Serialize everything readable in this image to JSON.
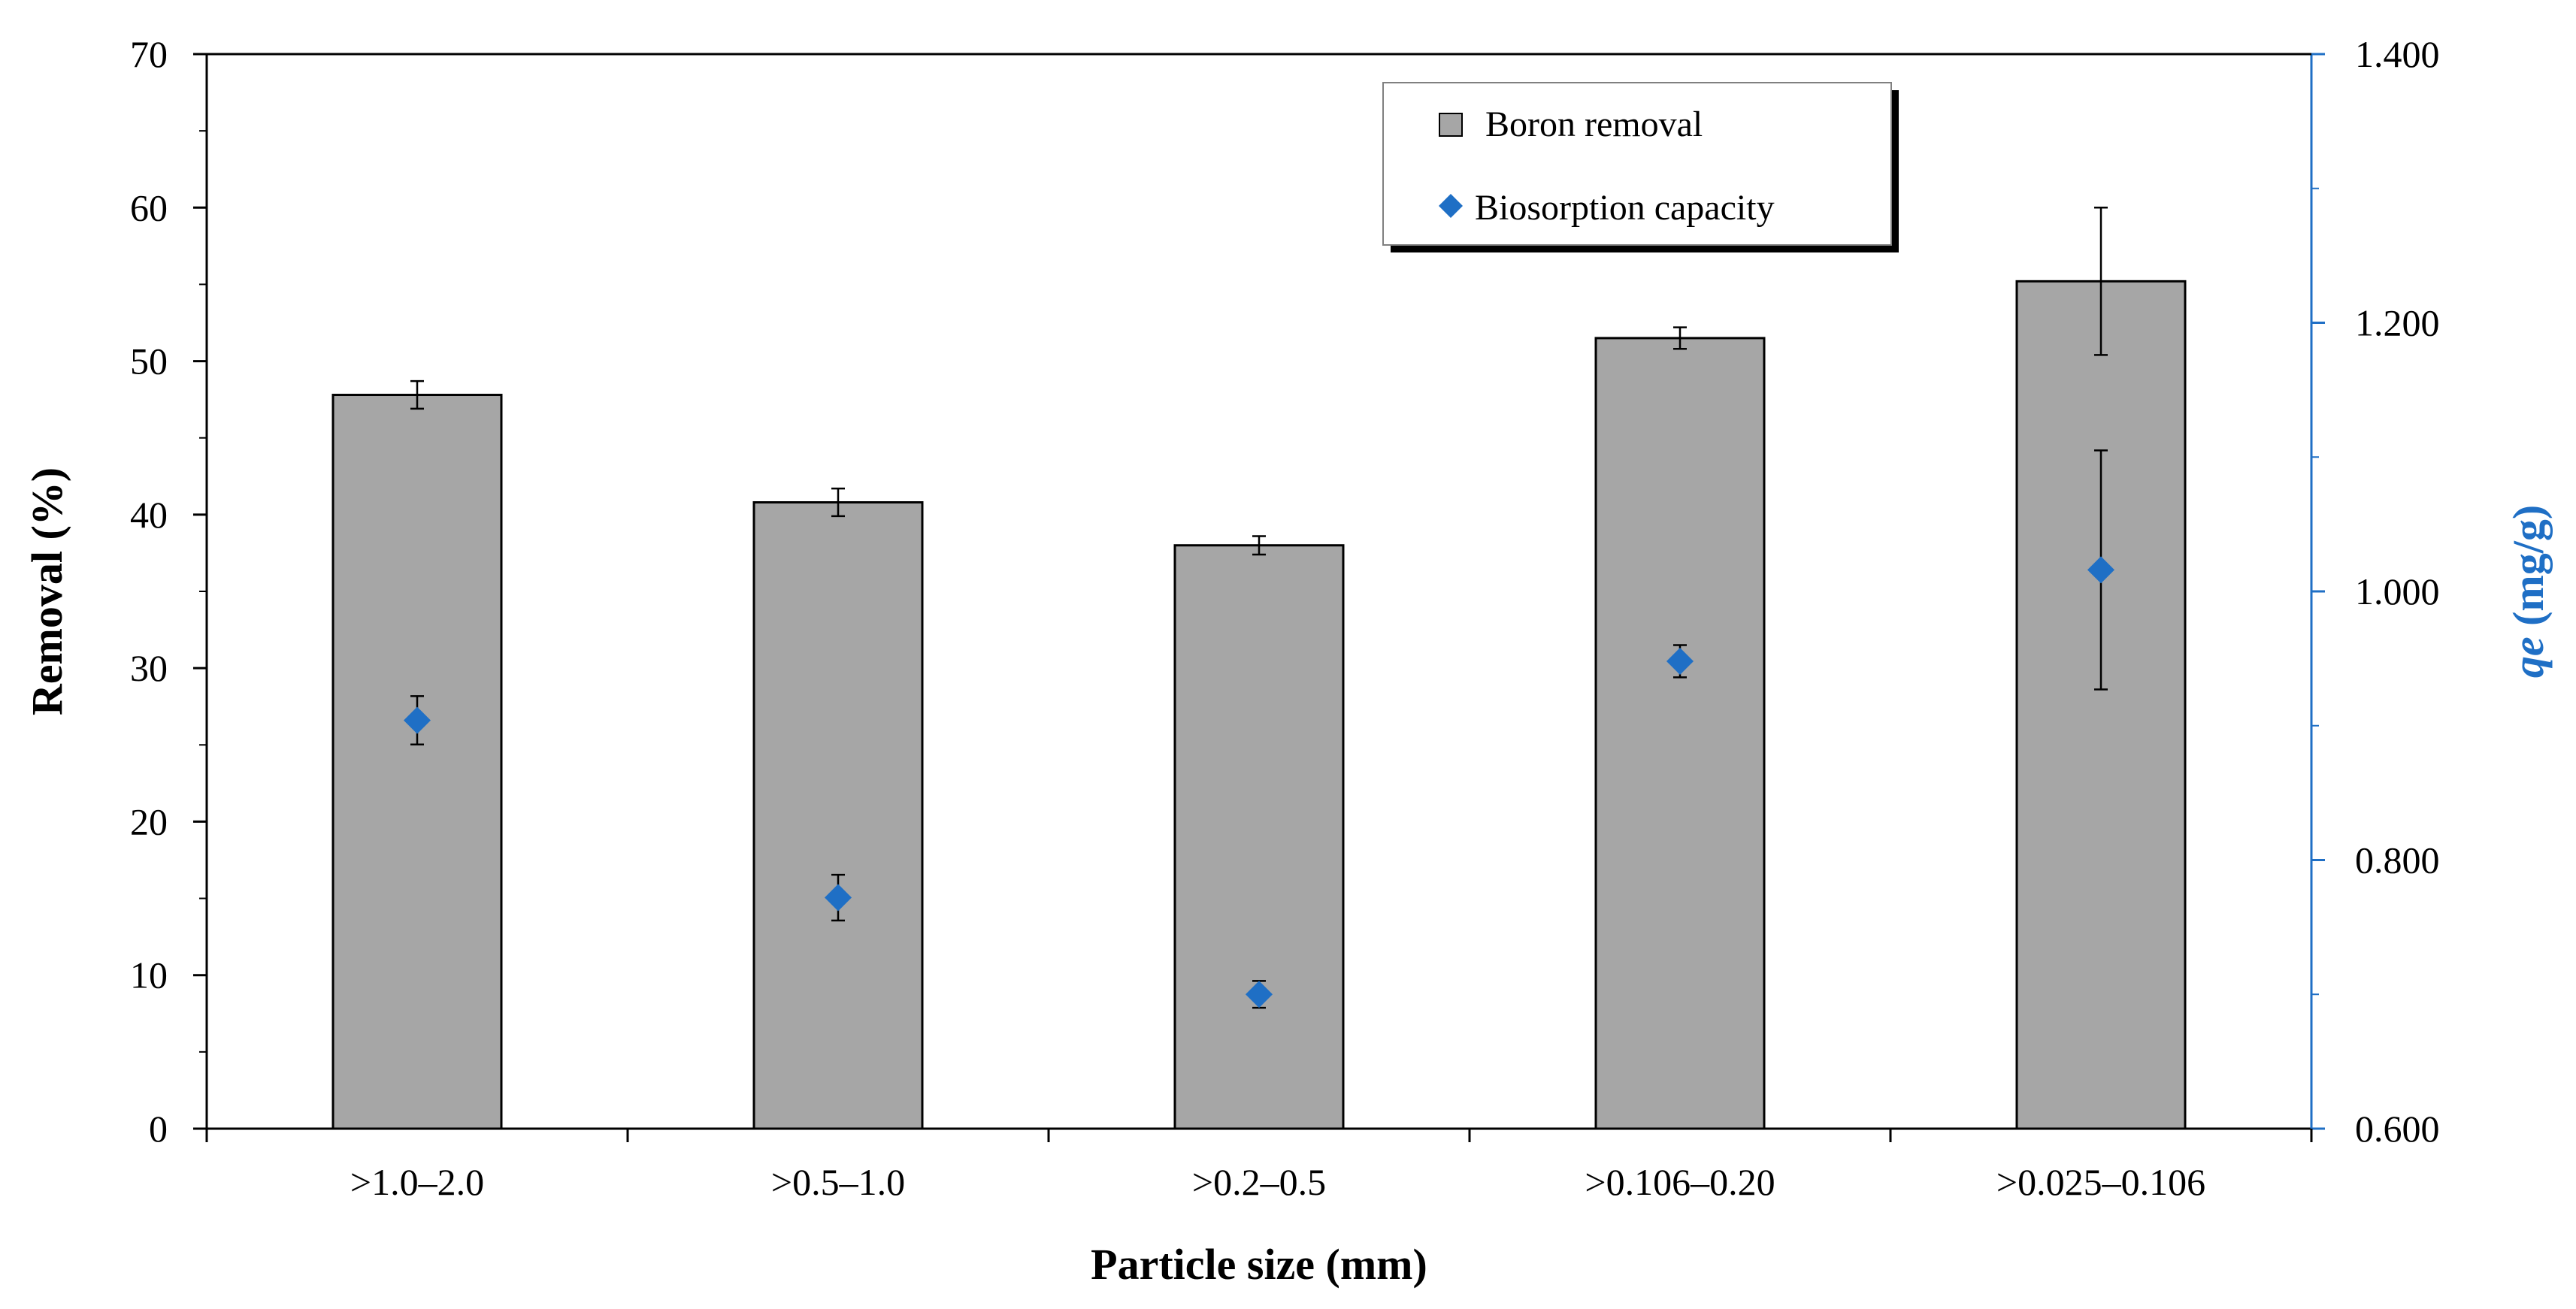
{
  "chart_data": {
    "type": "bar",
    "title": "",
    "categories": [
      ">1.0–2.0",
      ">0.5–1.0",
      ">0.2–0.5",
      ">0.106–0.20",
      ">0.025–0.106"
    ],
    "xlabel": "Particle size (mm)",
    "ylabel": "Removal (%)",
    "y2label_italic": "qe",
    "y2label_rest": " (mg/g)",
    "ylim": [
      0,
      70
    ],
    "yticks": [
      0,
      10,
      20,
      30,
      40,
      50,
      60,
      70
    ],
    "yminor_step": 5,
    "y2lim": [
      0.6,
      1.4
    ],
    "y2ticks": [
      "0.600",
      "0.800",
      "1.000",
      "1.200",
      "1.400"
    ],
    "y2tick_values": [
      0.6,
      0.8,
      1.0,
      1.2,
      1.4
    ],
    "y2minor_step": 0.1,
    "grid": false,
    "legend_position": "top-right",
    "series": [
      {
        "name": "Boron removal",
        "kind": "bar",
        "axis": "left",
        "color": "#a6a6a6",
        "values": [
          47.8,
          40.8,
          38.0,
          51.5,
          55.2
        ],
        "errors": [
          0.9,
          0.9,
          0.6,
          0.7,
          4.8
        ]
      },
      {
        "name": "Biosorption capacity",
        "kind": "scatter",
        "axis": "right",
        "color": "#1f6fc5",
        "values": [
          0.904,
          0.772,
          0.7,
          0.948,
          1.016
        ],
        "errors": [
          0.018,
          0.017,
          0.01,
          0.012,
          0.089
        ]
      }
    ]
  }
}
